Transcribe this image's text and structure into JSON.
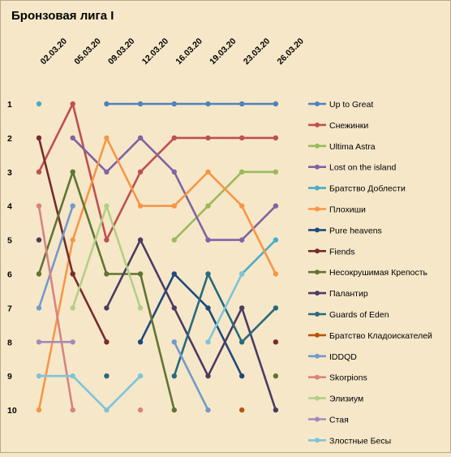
{
  "chart_data": {
    "type": "line",
    "title": "Бронзовая лига I",
    "x": [
      "02.03.20",
      "05.03.20",
      "09.03.20",
      "12.03.20",
      "16.03.20",
      "19.03.20",
      "23.03.20",
      "26.03.20"
    ],
    "y_tick_labels": [
      "1",
      "2",
      "3",
      "4",
      "5",
      "6",
      "7",
      "8",
      "9",
      "10"
    ],
    "ylim": [
      1,
      10
    ],
    "y_inverted": true,
    "grid": false,
    "legend_position": "right",
    "series": [
      {
        "name": "Up to Great",
        "color": "#4f81bd",
        "values": [
          null,
          null,
          1,
          1,
          1,
          1,
          1,
          1
        ]
      },
      {
        "name": "Снежинки",
        "color": "#c0504d",
        "values": [
          3,
          1,
          5,
          3,
          2,
          2,
          2,
          2
        ]
      },
      {
        "name": "Ultima Astra",
        "color": "#9bbb59",
        "values": [
          null,
          null,
          null,
          null,
          5,
          4,
          3,
          3
        ]
      },
      {
        "name": "Lost on the island",
        "color": "#8064a2",
        "values": [
          null,
          2,
          3,
          2,
          3,
          5,
          5,
          4
        ]
      },
      {
        "name": "Братство Доблести",
        "color": "#4bacc6",
        "values": [
          1,
          null,
          null,
          null,
          null,
          null,
          6,
          5
        ]
      },
      {
        "name": "Плохиши",
        "color": "#f79646",
        "values": [
          10,
          5,
          2,
          4,
          4,
          3,
          4,
          6
        ]
      },
      {
        "name": "Pure heavens",
        "color": "#1f497d",
        "values": [
          null,
          null,
          null,
          8,
          6,
          7,
          9,
          null
        ]
      },
      {
        "name": "Fiends",
        "color": "#772c2a",
        "values": [
          2,
          6,
          8,
          null,
          null,
          null,
          null,
          8
        ]
      },
      {
        "name": "Несокрушимая Крепость",
        "color": "#5f7530",
        "values": [
          6,
          3,
          6,
          6,
          10,
          null,
          null,
          9
        ]
      },
      {
        "name": "Палантир",
        "color": "#4d3b62",
        "values": [
          5,
          null,
          7,
          5,
          7,
          9,
          7,
          10
        ]
      },
      {
        "name": "Guards of Eden",
        "color": "#276a7c",
        "values": [
          null,
          null,
          9,
          null,
          9,
          6,
          8,
          7
        ]
      },
      {
        "name": "Братство Кладоискателей",
        "color": "#b65708",
        "values": [
          null,
          null,
          null,
          null,
          null,
          null,
          10,
          null
        ]
      },
      {
        "name": "IDDQD",
        "color": "#729aca",
        "values": [
          7,
          4,
          null,
          null,
          8,
          10,
          null,
          null
        ]
      },
      {
        "name": "Skorpions",
        "color": "#d9837f",
        "values": [
          4,
          10,
          null,
          10,
          null,
          null,
          null,
          null
        ]
      },
      {
        "name": "Элизиум",
        "color": "#b4cf85",
        "values": [
          null,
          7,
          4,
          7,
          null,
          null,
          null,
          null
        ]
      },
      {
        "name": "Стая",
        "color": "#a18bbd",
        "values": [
          8,
          8,
          null,
          null,
          null,
          null,
          null,
          null
        ]
      },
      {
        "name": "Злостные Бесы",
        "color": "#7dc4d8",
        "values": [
          9,
          9,
          10,
          9,
          null,
          8,
          6,
          null
        ]
      }
    ]
  }
}
